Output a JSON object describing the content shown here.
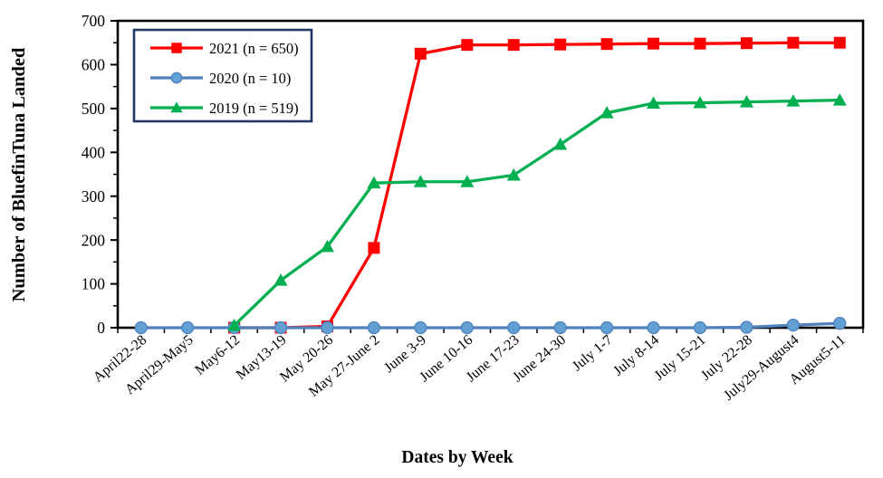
{
  "chart_data": {
    "type": "line",
    "title": "",
    "xlabel": "Dates by Week",
    "ylabel": "Number of BluefinTuna Landed",
    "ylim": [
      0,
      700
    ],
    "y_major_step": 100,
    "y_minor_step": 50,
    "grid": false,
    "legend_position": "top-left",
    "legend_border_color": "#1F3864",
    "axis_color": "#000000",
    "background_color": "#FFFFFF",
    "categories": [
      "April22-28",
      "April29-May5",
      "May6-12",
      "May13-19",
      "May 20-26",
      "May 27-June 2",
      "June 3-9",
      "June 10-16",
      "June 17-23",
      "June 24-30",
      "July 1-7",
      "July 8-14",
      "July 15-21",
      "July 22-28",
      "July29-August4",
      "August5-11"
    ],
    "series": [
      {
        "name": "2021 (n = 650)",
        "year": "2021",
        "n": 650,
        "color": "#FF0000",
        "marker": "square",
        "marker_fill": "#FF0000",
        "values": [
          null,
          null,
          0,
          0,
          3,
          182,
          625,
          645,
          645,
          646,
          647,
          648,
          648,
          649,
          650,
          650
        ]
      },
      {
        "name": "2020 (n = 10)",
        "year": "2020",
        "n": 10,
        "color": "#4F81BD",
        "marker": "circle",
        "marker_fill": "#62A0D4",
        "values": [
          0,
          0,
          0,
          0,
          0,
          0,
          0,
          0,
          0,
          0,
          0,
          0,
          0,
          1,
          6,
          10
        ]
      },
      {
        "name": "2019 (n = 519)",
        "year": "2019",
        "n": 519,
        "color": "#00B050",
        "marker": "triangle",
        "marker_fill": "#00B050",
        "values": [
          null,
          null,
          5,
          108,
          185,
          330,
          333,
          333,
          348,
          418,
          490,
          512,
          513,
          515,
          517,
          519
        ]
      }
    ],
    "draw_order": [
      0,
      1,
      2
    ],
    "legend_order": [
      0,
      1,
      2
    ]
  }
}
